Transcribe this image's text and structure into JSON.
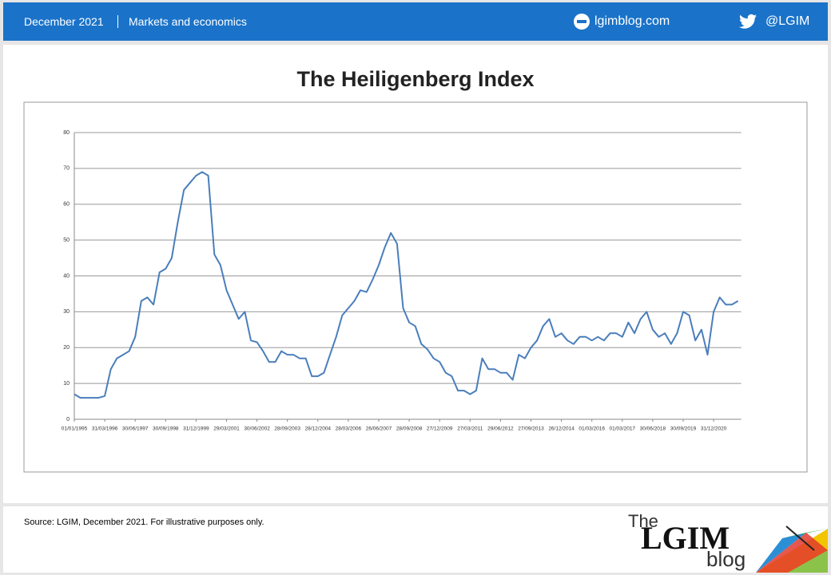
{
  "header": {
    "date": "December 2021",
    "section": "Markets and economics",
    "website": "lgimblog.com",
    "twitter": "@LGIM"
  },
  "chart_data": {
    "type": "line",
    "title": "The Heiligenberg Index",
    "categories": [
      "01/01/1995",
      null,
      null,
      null,
      null,
      "31/03/1996",
      null,
      null,
      null,
      null,
      "30/06/1997",
      null,
      null,
      null,
      null,
      "30/09/1998",
      null,
      null,
      null,
      null,
      "31/12/1999",
      null,
      null,
      null,
      null,
      "29/03/2001",
      null,
      null,
      null,
      null,
      "30/06/2002",
      null,
      null,
      null,
      null,
      "28/09/2003",
      null,
      null,
      null,
      null,
      "28/12/2004",
      null,
      null,
      null,
      null,
      "28/03/2006",
      null,
      null,
      null,
      null,
      "26/06/2007",
      null,
      null,
      null,
      null,
      "28/09/2008",
      null,
      null,
      null,
      null,
      "27/12/2009",
      null,
      null,
      null,
      null,
      "27/03/2011",
      null,
      null,
      null,
      null,
      "29/06/2012",
      null,
      null,
      null,
      null,
      "27/09/2013",
      null,
      null,
      null,
      null,
      "26/12/2014",
      null,
      null,
      null,
      null,
      "01/03/2016",
      null,
      null,
      null,
      null,
      "01/03/2017",
      null,
      null,
      null,
      null,
      "30/06/2018",
      null,
      null,
      null,
      null,
      "30/09/2019",
      null,
      null,
      null,
      null,
      "31/12/2020",
      null,
      null,
      null,
      null
    ],
    "values": [
      7,
      6,
      6,
      6,
      6,
      6.5,
      14,
      17,
      18,
      19,
      23,
      33,
      34,
      32,
      41,
      42,
      45,
      55,
      64,
      66,
      68,
      69,
      68,
      46,
      43,
      36,
      32,
      28,
      30,
      22,
      21.5,
      19,
      16,
      16,
      19,
      18,
      18,
      17,
      17,
      12,
      12,
      13,
      18,
      23,
      29,
      31,
      33,
      36,
      35.5,
      39,
      43,
      48,
      52,
      49,
      31,
      27,
      26,
      21,
      19.5,
      17,
      16,
      13,
      12,
      8,
      8,
      7,
      8,
      17,
      14,
      14,
      13,
      13,
      11,
      18,
      17,
      20,
      22,
      26,
      28,
      23,
      24,
      22,
      21,
      23,
      23,
      22,
      23,
      22,
      24,
      24,
      23,
      27,
      24,
      28,
      30,
      25,
      23,
      24,
      21,
      24,
      30,
      29,
      22,
      25,
      18,
      30,
      34,
      32,
      32,
      33
    ],
    "color": "#4a7ebb",
    "ylim": [
      0,
      80
    ],
    "yticks": [
      0,
      10,
      20,
      30,
      40,
      50,
      60,
      70,
      80
    ],
    "grid": true
  },
  "footer": {
    "source": "Source: LGIM,  December 2021. For illustrative purposes only."
  },
  "logo": {
    "the": "The",
    "name": "LGIM",
    "blog": "blog"
  }
}
